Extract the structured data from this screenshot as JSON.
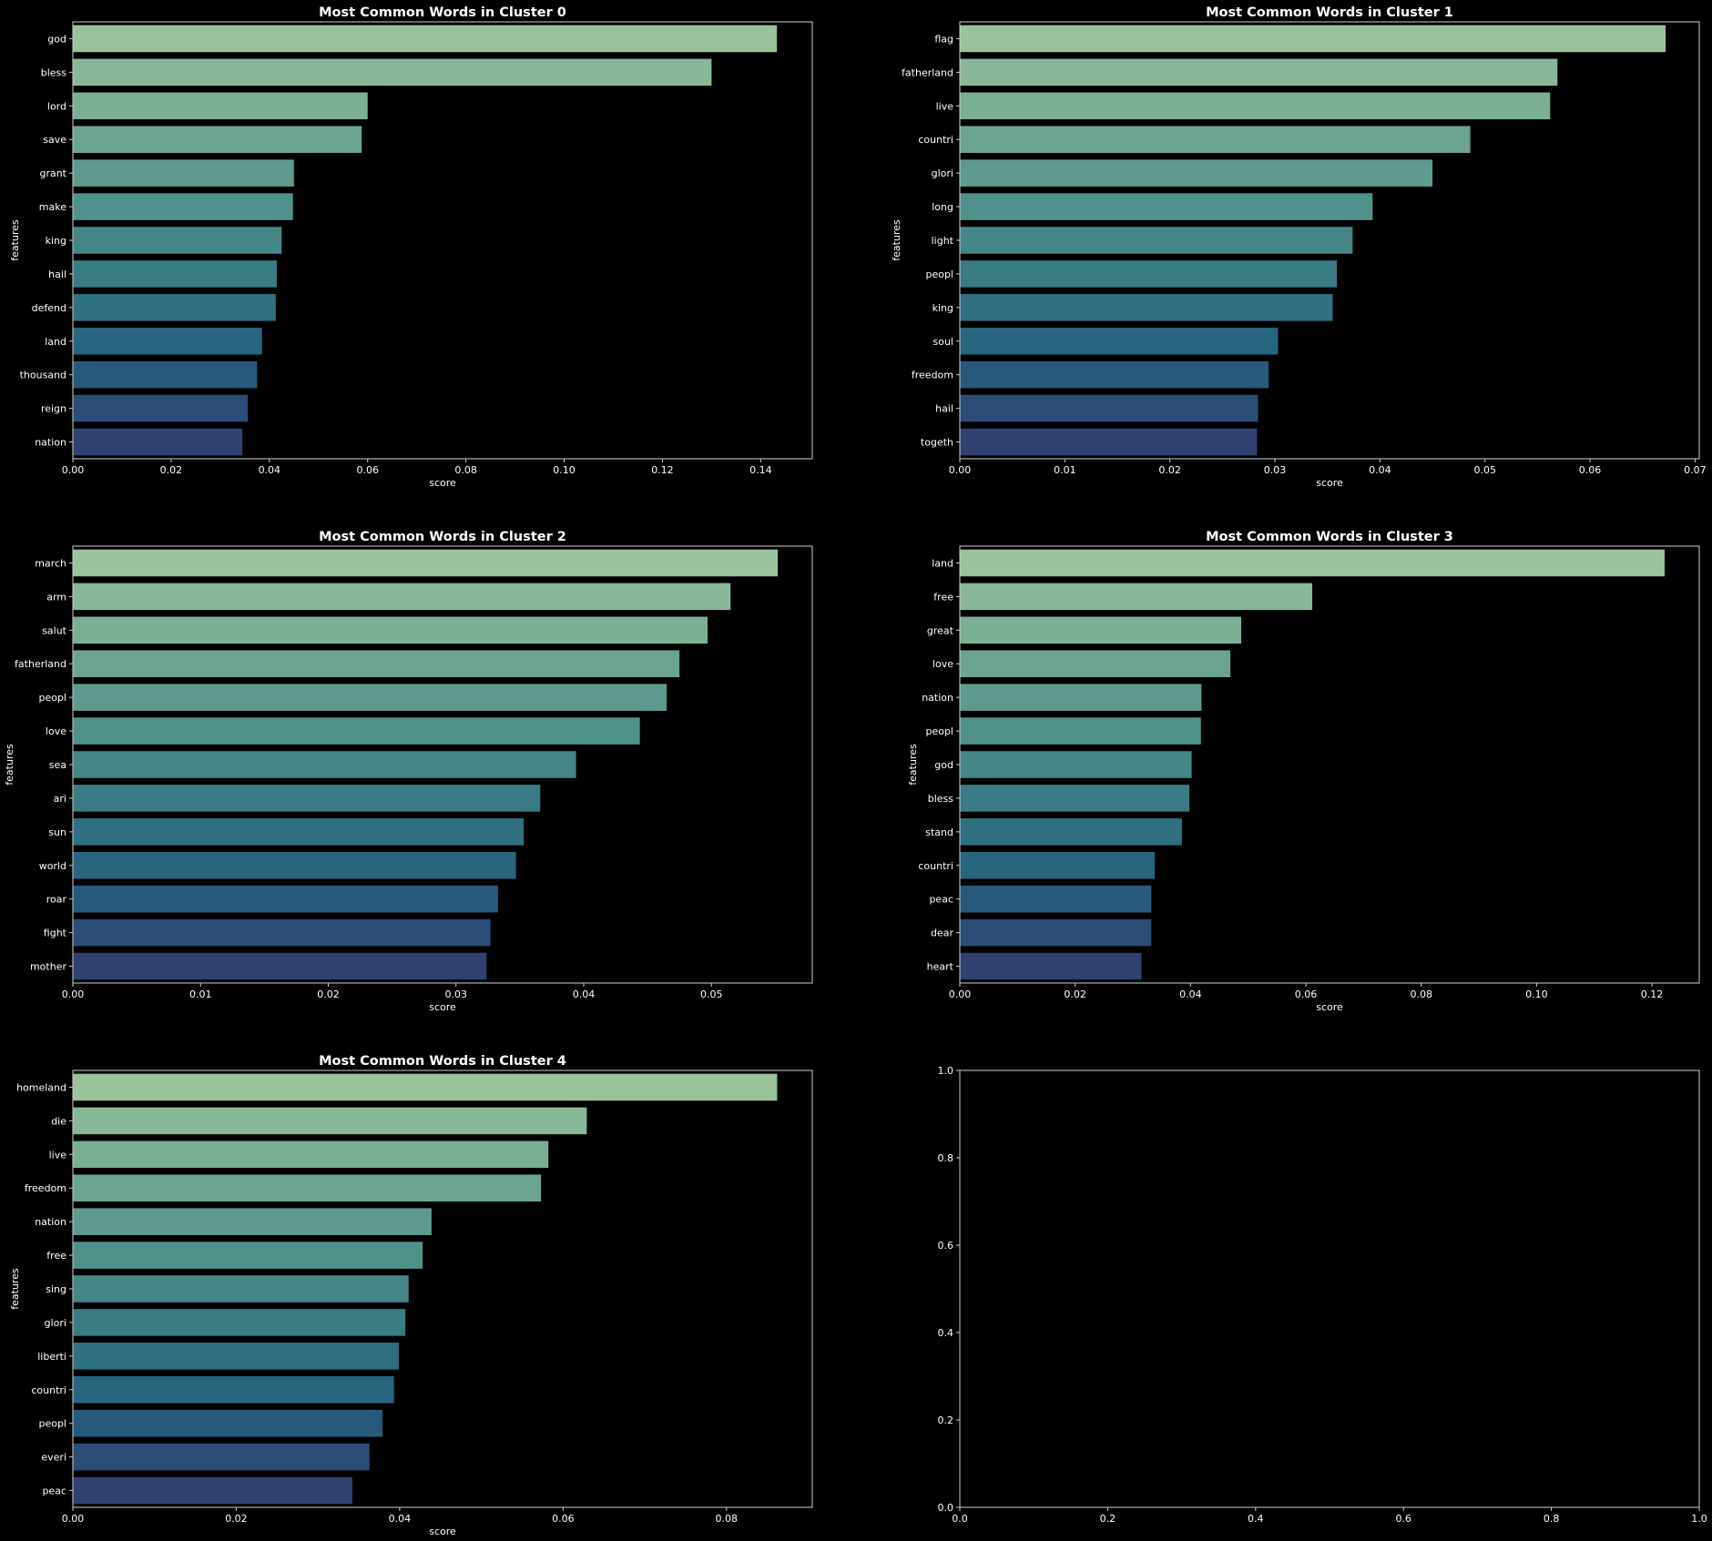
{
  "chart_data": [
    {
      "type": "bar",
      "orientation": "horizontal",
      "title": "Most Common Words in Cluster 0",
      "xlabel": "score",
      "ylabel": "features",
      "xlim": [
        0,
        0.1505
      ],
      "xticks": [
        0.0,
        0.02,
        0.04,
        0.06,
        0.08,
        0.1,
        0.12,
        0.14
      ],
      "xtick_labels": [
        "0.00",
        "0.02",
        "0.04",
        "0.06",
        "0.08",
        "0.10",
        "0.12",
        "0.14"
      ],
      "categories": [
        "god",
        "bless",
        "lord",
        "save",
        "grant",
        "make",
        "king",
        "hail",
        "defend",
        "land",
        "thousand",
        "reign",
        "nation"
      ],
      "values": [
        0.1433,
        0.13,
        0.06,
        0.0588,
        0.045,
        0.0448,
        0.0425,
        0.0415,
        0.0413,
        0.0385,
        0.0375,
        0.0356,
        0.0345
      ]
    },
    {
      "type": "bar",
      "orientation": "horizontal",
      "title": "Most Common Words in Cluster 1",
      "xlabel": "score",
      "ylabel": "features",
      "xlim": [
        0,
        0.0704
      ],
      "xticks": [
        0.0,
        0.01,
        0.02,
        0.03,
        0.04,
        0.05,
        0.06,
        0.07
      ],
      "xtick_labels": [
        "0.00",
        "0.01",
        "0.02",
        "0.03",
        "0.04",
        "0.05",
        "0.06",
        "0.07"
      ],
      "categories": [
        "flag",
        "fatherland",
        "live",
        "countri",
        "glori",
        "long",
        "light",
        "peopl",
        "king",
        "soul",
        "freedom",
        "hail",
        "togeth"
      ],
      "values": [
        0.0672,
        0.0569,
        0.0562,
        0.0486,
        0.045,
        0.0393,
        0.0374,
        0.0359,
        0.0355,
        0.0303,
        0.0294,
        0.0284,
        0.0283
      ]
    },
    {
      "type": "bar",
      "orientation": "horizontal",
      "title": "Most Common Words in Cluster 2",
      "xlabel": "score",
      "ylabel": "features",
      "xlim": [
        0,
        0.0579
      ],
      "xticks": [
        0.0,
        0.01,
        0.02,
        0.03,
        0.04,
        0.05
      ],
      "xtick_labels": [
        "0.00",
        "0.01",
        "0.02",
        "0.03",
        "0.04",
        "0.05"
      ],
      "categories": [
        "march",
        "arm",
        "salut",
        "fatherland",
        "peopl",
        "love",
        "sea",
        "ari",
        "sun",
        "world",
        "roar",
        "fight",
        "mother"
      ],
      "values": [
        0.0552,
        0.0515,
        0.0497,
        0.0475,
        0.0465,
        0.0444,
        0.0394,
        0.0366,
        0.0353,
        0.0347,
        0.0333,
        0.0327,
        0.0324
      ]
    },
    {
      "type": "bar",
      "orientation": "horizontal",
      "title": "Most Common Words in Cluster 3",
      "xlabel": "score",
      "ylabel": "features",
      "xlim": [
        0,
        0.1282
      ],
      "xticks": [
        0.0,
        0.02,
        0.04,
        0.06,
        0.08,
        0.1,
        0.12
      ],
      "xtick_labels": [
        "0.00",
        "0.02",
        "0.04",
        "0.06",
        "0.08",
        "0.10",
        "0.12"
      ],
      "categories": [
        "land",
        "free",
        "great",
        "love",
        "nation",
        "peopl",
        "god",
        "bless",
        "stand",
        "countri",
        "peac",
        "dear",
        "heart"
      ],
      "values": [
        0.1222,
        0.0611,
        0.0488,
        0.0469,
        0.0419,
        0.0418,
        0.0402,
        0.0398,
        0.0385,
        0.0338,
        0.0332,
        0.0332,
        0.0315
      ]
    },
    {
      "type": "bar",
      "orientation": "horizontal",
      "title": "Most Common Words in Cluster 4",
      "xlabel": "score",
      "ylabel": "features",
      "xlim": [
        0,
        0.0905
      ],
      "xticks": [
        0.0,
        0.02,
        0.04,
        0.06,
        0.08
      ],
      "xtick_labels": [
        "0.00",
        "0.02",
        "0.04",
        "0.06",
        "0.08"
      ],
      "categories": [
        "homeland",
        "die",
        "live",
        "freedom",
        "nation",
        "free",
        "sing",
        "glori",
        "liberti",
        "countri",
        "peopl",
        "everi",
        "peac"
      ],
      "values": [
        0.0862,
        0.0629,
        0.0582,
        0.0573,
        0.0439,
        0.0428,
        0.0411,
        0.0407,
        0.0399,
        0.0393,
        0.0379,
        0.0363,
        0.0342
      ]
    },
    {
      "type": "empty",
      "title": "",
      "xlim": [
        0,
        1
      ],
      "ylim": [
        0,
        1
      ],
      "xticks": [
        0.0,
        0.2,
        0.4,
        0.6,
        0.8,
        1.0
      ],
      "xtick_labels": [
        "0.0",
        "0.2",
        "0.4",
        "0.6",
        "0.8",
        "1.0"
      ],
      "yticks": [
        0.0,
        0.2,
        0.4,
        0.6,
        0.8,
        1.0
      ],
      "ytick_labels": [
        "0.0",
        "0.2",
        "0.4",
        "0.6",
        "0.8",
        "1.0"
      ]
    }
  ],
  "colors": {
    "background": "#000000",
    "text": "#ffffff",
    "spine": "#cfcfcf",
    "palette_crest": [
      "#9ac29b",
      "#89b898",
      "#7aaf94",
      "#6ba591",
      "#5e9b8e",
      "#51918b",
      "#458687",
      "#3a7b84",
      "#307080",
      "#28657e",
      "#27597b",
      "#2b4d77",
      "#304172"
    ]
  }
}
